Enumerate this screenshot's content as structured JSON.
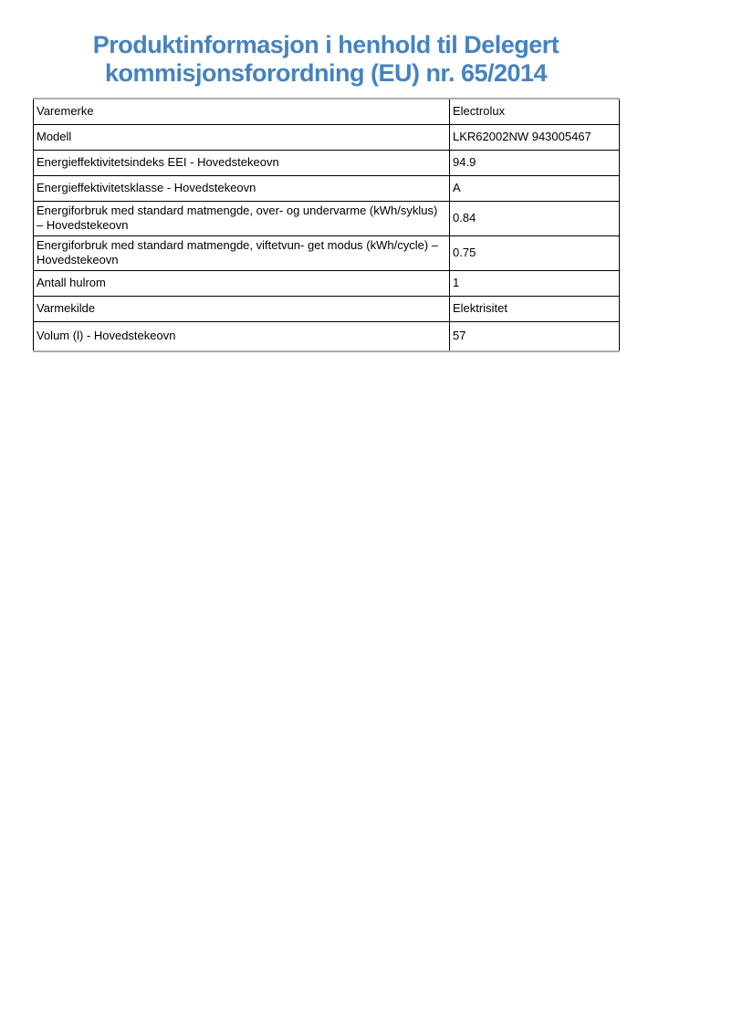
{
  "title": {
    "line1": "Produktinformasjon i henhold til Delegert",
    "line2": "kommisjonsforordning (EU) nr. 65/2014"
  },
  "colors": {
    "title_blue": "#4583BF",
    "table_inner_border": "#000000",
    "table_outer_rule": "#ababab",
    "text": "#000000",
    "background": "#ffffff"
  },
  "table": {
    "rows": [
      {
        "label": "Varemerke",
        "value": "Electrolux"
      },
      {
        "label": "Modell",
        "value": "LKR62002NW 943005467"
      },
      {
        "label": "Energieffektivitetsindeks EEI - Hovedstekeovn",
        "value": "94.9"
      },
      {
        "label": "Energieffektivitetsklasse - Hovedstekeovn",
        "value": "A"
      },
      {
        "label": "Energiforbruk med standard matmengde, over- og undervarme (kWh/syklus) – Hovedstekeovn",
        "value": "0.84"
      },
      {
        "label": "Energiforbruk med standard matmengde, viftetvun- get modus (kWh/cycle) – Hovedstekeovn",
        "value": "0.75"
      },
      {
        "label": "Antall hulrom",
        "value": "1"
      },
      {
        "label": "Varmekilde",
        "value": "Elektrisitet"
      },
      {
        "label": "Volum (l) - Hovedstekeovn",
        "value": "57"
      }
    ]
  }
}
